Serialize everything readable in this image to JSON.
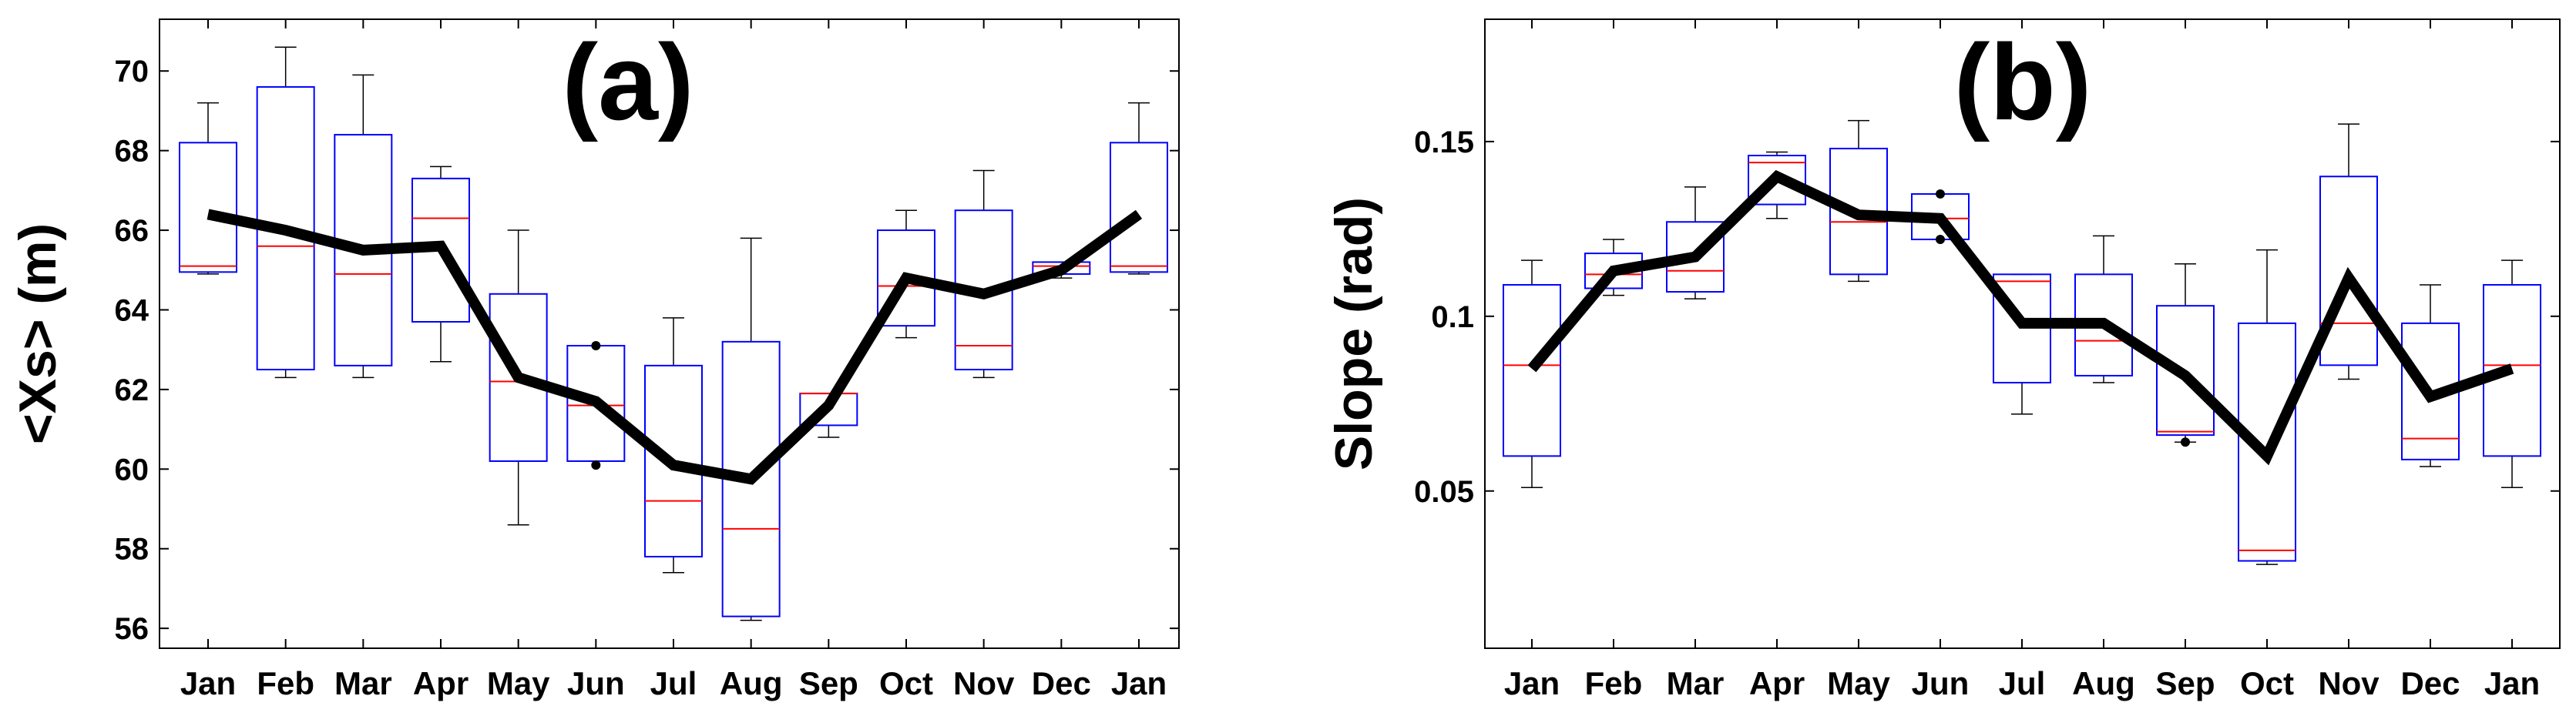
{
  "chart_data": [
    {
      "type": "box",
      "panel_label": "(a)",
      "ylabel": "<Xs> (m)",
      "xlabel": "",
      "ylim": [
        55.5,
        71.3
      ],
      "yticks": [
        56,
        58,
        60,
        62,
        64,
        66,
        68,
        70
      ],
      "categories": [
        "Jan",
        "Feb",
        "Mar",
        "Apr",
        "May",
        "Jun",
        "Jul",
        "Aug",
        "Sep",
        "Oct",
        "Nov",
        "Dec",
        "Jan"
      ],
      "box_edge_color": "#0000ff",
      "median_color": "#ff0000",
      "mean_line_color": "#000000",
      "boxes": [
        {
          "whisker_low": 64.9,
          "q1": 64.95,
          "median": 65.1,
          "q3": 68.2,
          "whisker_high": 69.2,
          "outliers": []
        },
        {
          "whisker_low": 62.3,
          "q1": 62.5,
          "median": 65.6,
          "q3": 69.6,
          "whisker_high": 70.6,
          "outliers": []
        },
        {
          "whisker_low": 62.3,
          "q1": 62.6,
          "median": 64.9,
          "q3": 68.4,
          "whisker_high": 69.9,
          "outliers": []
        },
        {
          "whisker_low": 62.7,
          "q1": 63.7,
          "median": 66.3,
          "q3": 67.3,
          "whisker_high": 67.6,
          "outliers": []
        },
        {
          "whisker_low": 58.6,
          "q1": 60.2,
          "median": 62.2,
          "q3": 64.4,
          "whisker_high": 66.0,
          "outliers": []
        },
        {
          "whisker_low": 60.2,
          "q1": 60.2,
          "median": 61.6,
          "q3": 63.1,
          "whisker_high": 63.1,
          "outliers": [
            60.1,
            63.1
          ]
        },
        {
          "whisker_low": 57.4,
          "q1": 57.8,
          "median": 59.2,
          "q3": 62.6,
          "whisker_high": 63.8,
          "outliers": []
        },
        {
          "whisker_low": 56.2,
          "q1": 56.3,
          "median": 58.5,
          "q3": 63.2,
          "whisker_high": 65.8,
          "outliers": []
        },
        {
          "whisker_low": 60.8,
          "q1": 61.1,
          "median": 61.9,
          "q3": 61.9,
          "whisker_high": 61.9,
          "outliers": []
        },
        {
          "whisker_low": 63.3,
          "q1": 63.6,
          "median": 64.6,
          "q3": 66.0,
          "whisker_high": 66.5,
          "outliers": []
        },
        {
          "whisker_low": 62.3,
          "q1": 62.5,
          "median": 63.1,
          "q3": 66.5,
          "whisker_high": 67.5,
          "outliers": []
        },
        {
          "whisker_low": 64.8,
          "q1": 64.9,
          "median": 65.1,
          "q3": 65.2,
          "whisker_high": 65.2,
          "outliers": []
        },
        {
          "whisker_low": 64.9,
          "q1": 64.95,
          "median": 65.1,
          "q3": 68.2,
          "whisker_high": 69.2,
          "outliers": []
        }
      ],
      "mean_line": [
        66.4,
        66.0,
        65.5,
        65.6,
        62.3,
        61.7,
        60.1,
        59.75,
        61.6,
        64.8,
        64.4,
        65.0,
        66.4
      ]
    },
    {
      "type": "box",
      "panel_label": "(b)",
      "ylabel": "Slope (rad)",
      "xlabel": "",
      "ylim": [
        0.005,
        0.185
      ],
      "yticks": [
        0.05,
        0.1,
        0.15
      ],
      "ytick_labels": [
        "0.05",
        "0.1",
        "0.15"
      ],
      "categories": [
        "Jan",
        "Feb",
        "Mar",
        "Apr",
        "May",
        "Jun",
        "Jul",
        "Aug",
        "Sep",
        "Oct",
        "Nov",
        "Dec",
        "Jan"
      ],
      "box_edge_color": "#0000ff",
      "median_color": "#ff0000",
      "mean_line_color": "#000000",
      "boxes": [
        {
          "whisker_low": 0.051,
          "q1": 0.06,
          "median": 0.086,
          "q3": 0.109,
          "whisker_high": 0.116,
          "outliers": []
        },
        {
          "whisker_low": 0.106,
          "q1": 0.108,
          "median": 0.112,
          "q3": 0.118,
          "whisker_high": 0.122,
          "outliers": []
        },
        {
          "whisker_low": 0.105,
          "q1": 0.107,
          "median": 0.113,
          "q3": 0.127,
          "whisker_high": 0.137,
          "outliers": []
        },
        {
          "whisker_low": 0.128,
          "q1": 0.132,
          "median": 0.144,
          "q3": 0.146,
          "whisker_high": 0.147,
          "outliers": []
        },
        {
          "whisker_low": 0.11,
          "q1": 0.112,
          "median": 0.127,
          "q3": 0.148,
          "whisker_high": 0.156,
          "outliers": []
        },
        {
          "whisker_low": 0.122,
          "q1": 0.122,
          "median": 0.128,
          "q3": 0.135,
          "whisker_high": 0.135,
          "outliers": [
            0.122,
            0.135
          ]
        },
        {
          "whisker_low": 0.072,
          "q1": 0.081,
          "median": 0.11,
          "q3": 0.112,
          "whisker_high": 0.112,
          "outliers": []
        },
        {
          "whisker_low": 0.081,
          "q1": 0.083,
          "median": 0.093,
          "q3": 0.112,
          "whisker_high": 0.123,
          "outliers": []
        },
        {
          "whisker_low": 0.064,
          "q1": 0.066,
          "median": 0.067,
          "q3": 0.103,
          "whisker_high": 0.115,
          "outliers": [
            0.064
          ]
        },
        {
          "whisker_low": 0.029,
          "q1": 0.03,
          "median": 0.033,
          "q3": 0.098,
          "whisker_high": 0.119,
          "outliers": []
        },
        {
          "whisker_low": 0.082,
          "q1": 0.086,
          "median": 0.098,
          "q3": 0.14,
          "whisker_high": 0.155,
          "outliers": []
        },
        {
          "whisker_low": 0.057,
          "q1": 0.059,
          "median": 0.065,
          "q3": 0.098,
          "whisker_high": 0.109,
          "outliers": []
        },
        {
          "whisker_low": 0.051,
          "q1": 0.06,
          "median": 0.086,
          "q3": 0.109,
          "whisker_high": 0.116,
          "outliers": []
        }
      ],
      "mean_line": [
        0.085,
        0.113,
        0.117,
        0.14,
        0.129,
        0.128,
        0.098,
        0.098,
        0.083,
        0.06,
        0.111,
        0.077,
        0.085
      ]
    }
  ]
}
